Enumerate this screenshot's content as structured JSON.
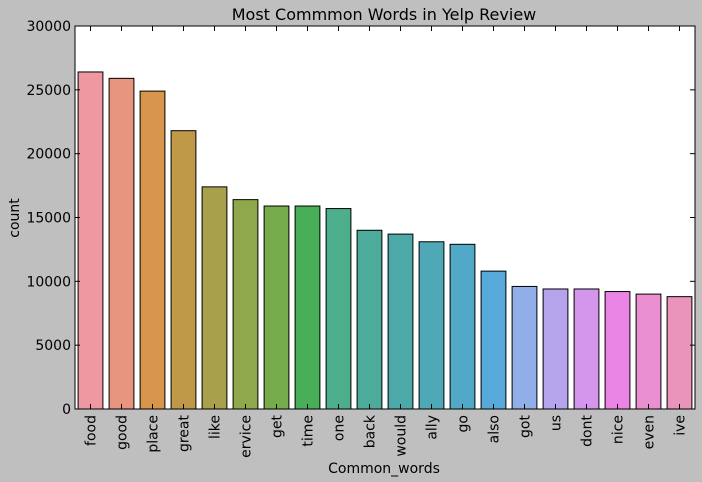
{
  "chart_data": {
    "type": "bar",
    "title": "Most Commmon Words in Yelp Review",
    "xlabel": "Common_words",
    "ylabel": "count",
    "ylim": [
      0,
      30000
    ],
    "yticks": [
      0,
      5000,
      10000,
      15000,
      20000,
      25000,
      30000
    ],
    "yticks_text": [
      "0",
      "5000",
      "10000",
      "15000",
      "20000",
      "25000",
      "30000"
    ],
    "grid": false,
    "categories": [
      "food",
      "good",
      "place",
      "great",
      "like",
      "ervice",
      "get",
      "time",
      "one",
      "back",
      "would",
      "ally",
      "go",
      "also",
      "got",
      "us",
      "dont",
      "nice",
      "even",
      "ive"
    ],
    "values": [
      26400,
      25900,
      24900,
      21800,
      17400,
      16400,
      15900,
      15900,
      15700,
      14000,
      13700,
      13100,
      12900,
      10800,
      9600,
      9400,
      9400,
      9200,
      9000,
      8800
    ],
    "colors": [
      "#ee99a2",
      "#e8957f",
      "#d8954c",
      "#bf9948",
      "#a8a04a",
      "#8ea84b",
      "#76ac4c",
      "#48ae58",
      "#4dae8c",
      "#4cab9a",
      "#4ca9a8",
      "#4ea8b6",
      "#52a8c7",
      "#56a9da",
      "#90aee8",
      "#b5a3eb",
      "#d496ec",
      "#ea84e5",
      "#ea90d2",
      "#eb94bb"
    ]
  }
}
